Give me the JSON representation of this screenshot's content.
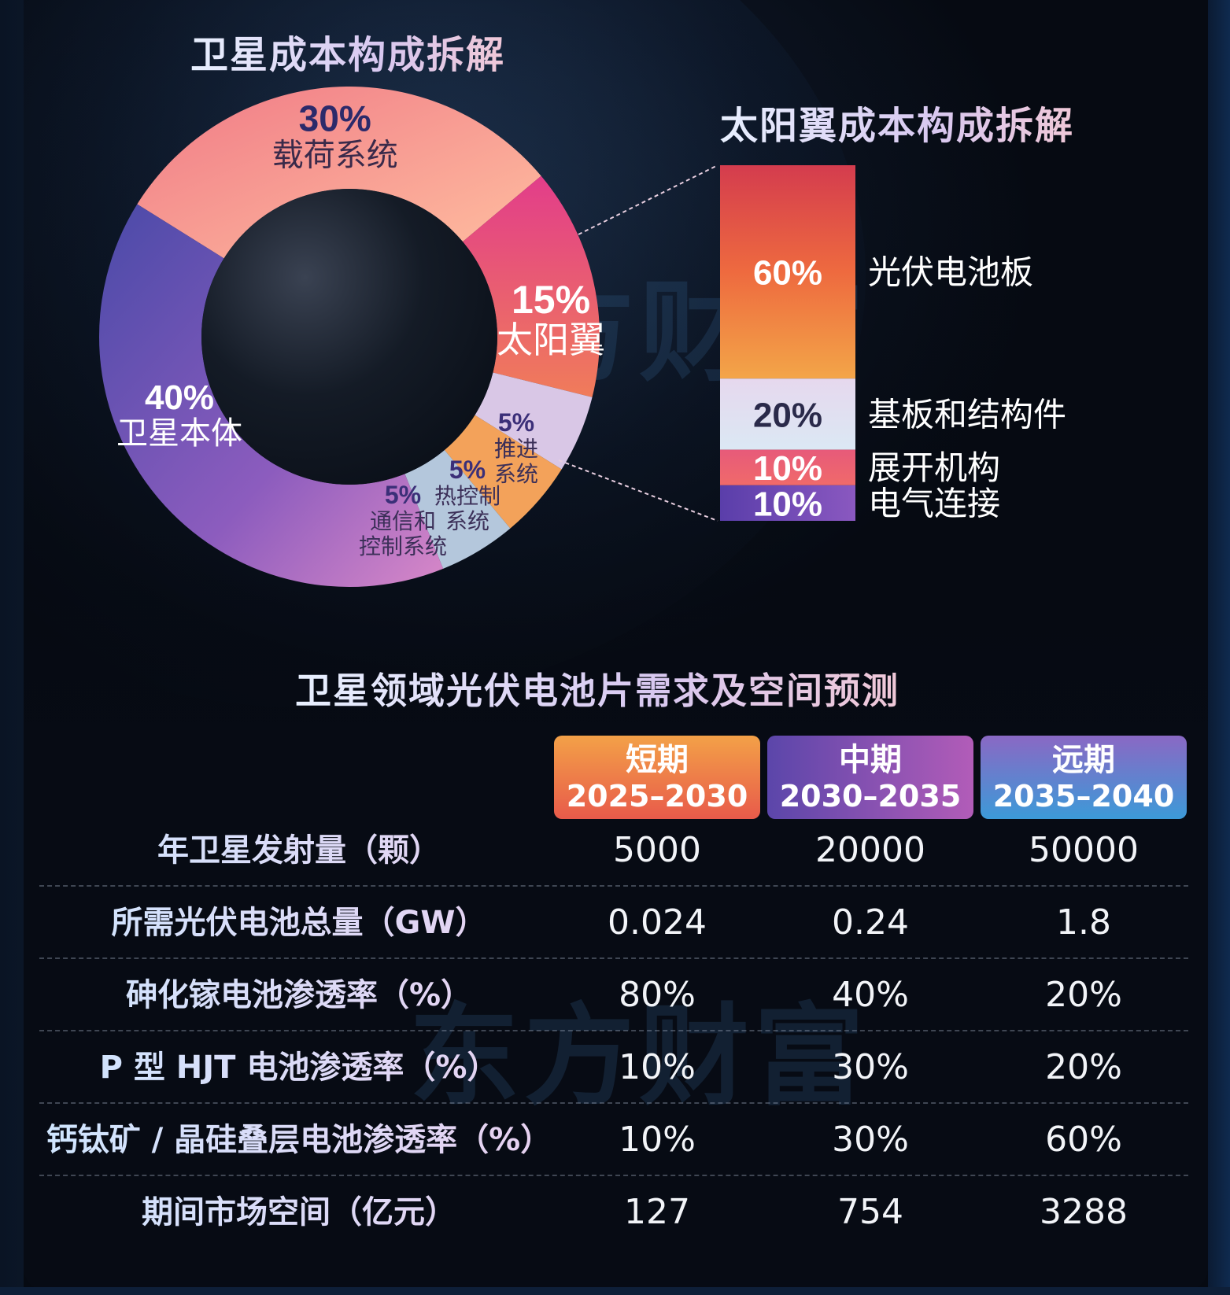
{
  "titles": {
    "satellite_cost": "卫星成本构成拆解",
    "solar_wing_cost": "太阳翼成本构成拆解",
    "forecast": "卫星领域光伏电池片需求及空间预测"
  },
  "watermark": "东方财富",
  "chart_data": [
    {
      "type": "pie",
      "title": "卫星成本构成拆解",
      "donut": true,
      "slices": [
        {
          "label": "载荷系统",
          "value": 30,
          "display": "30%",
          "color": "#f39a86"
        },
        {
          "label": "太阳翼",
          "value": 15,
          "display": "15%",
          "color": "#e44a8f"
        },
        {
          "label": "推进系统",
          "value": 5,
          "display": "5%",
          "color": "#d9c7e6"
        },
        {
          "label": "热控制系统",
          "value": 5,
          "display": "5%",
          "color": "#f3a25a"
        },
        {
          "label": "通信和控制系统",
          "value": 5,
          "display": "5%",
          "color": "#b4c7dc"
        },
        {
          "label": "卫星本体",
          "value": 40,
          "display": "40%",
          "color": "#7a56b8"
        }
      ]
    },
    {
      "type": "bar",
      "stacked": true,
      "title": "太阳翼成本构成拆解",
      "segments": [
        {
          "label": "光伏电池板",
          "value": 60,
          "display": "60%",
          "color": "#ec6a45"
        },
        {
          "label": "基板和结构件",
          "value": 20,
          "display": "20%",
          "color": "#dfe4f0"
        },
        {
          "label": "展开机构",
          "value": 10,
          "display": "10%",
          "color": "#ea5f79"
        },
        {
          "label": "电气连接",
          "value": 10,
          "display": "10%",
          "color": "#6a48b0"
        }
      ]
    },
    {
      "type": "table",
      "title": "卫星领域光伏电池片需求及空间预测",
      "columns": [
        {
          "name": "短期",
          "period": "2025–2030"
        },
        {
          "name": "中期",
          "period": "2030–2035"
        },
        {
          "name": "远期",
          "period": "2035–2040"
        }
      ],
      "rows": [
        {
          "label": "年卫星发射量（颗）",
          "values": [
            "5000",
            "20000",
            "50000"
          ]
        },
        {
          "label": "所需光伏电池总量（GW）",
          "values": [
            "0.024",
            "0.24",
            "1.8"
          ]
        },
        {
          "label": "砷化镓电池渗透率（%）",
          "values": [
            "80%",
            "40%",
            "20%"
          ]
        },
        {
          "label": "P 型 HJT 电池渗透率（%）",
          "values": [
            "10%",
            "30%",
            "20%"
          ]
        },
        {
          "label": "钙钛矿 / 晶硅叠层电池渗透率（%）",
          "values": [
            "10%",
            "30%",
            "60%"
          ]
        },
        {
          "label": "期间市场空间（亿元）",
          "values": [
            "127",
            "754",
            "3288"
          ]
        }
      ]
    }
  ]
}
